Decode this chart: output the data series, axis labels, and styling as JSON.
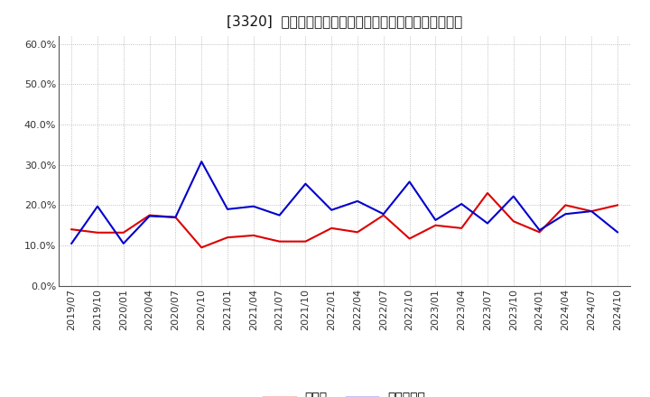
{
  "title": "[3320]  現須金、有利子負債の総資産に対する比率の推移",
  "x_labels": [
    "2019/07",
    "2019/10",
    "2020/01",
    "2020/04",
    "2020/07",
    "2020/10",
    "2021/01",
    "2021/04",
    "2021/07",
    "2021/10",
    "2022/01",
    "2022/04",
    "2022/07",
    "2022/10",
    "2023/01",
    "2023/04",
    "2023/07",
    "2023/10",
    "2024/01",
    "2024/04",
    "2024/07",
    "2024/10"
  ],
  "cash_values": [
    0.14,
    0.132,
    0.132,
    0.175,
    0.17,
    0.095,
    0.12,
    0.125,
    0.11,
    0.11,
    0.143,
    0.133,
    0.175,
    0.117,
    0.15,
    0.143,
    0.23,
    0.16,
    0.133,
    0.2,
    0.185,
    0.2
  ],
  "debt_values": [
    0.105,
    0.197,
    0.105,
    0.173,
    0.17,
    0.308,
    0.19,
    0.197,
    0.175,
    0.253,
    0.188,
    0.21,
    0.178,
    0.258,
    0.163,
    0.203,
    0.155,
    0.222,
    0.138,
    0.178,
    0.185,
    0.133
  ],
  "cash_color": "#dd0000",
  "debt_color": "#0000cc",
  "legend_cash": "現須金",
  "legend_debt": "有利子負債",
  "background_color": "#ffffff",
  "grid_color": "#999999",
  "ylim": [
    0.0,
    0.62
  ],
  "yticks": [
    0.0,
    0.1,
    0.2,
    0.3,
    0.4,
    0.5,
    0.6
  ],
  "title_fontsize": 11,
  "tick_fontsize": 8,
  "legend_fontsize": 10
}
